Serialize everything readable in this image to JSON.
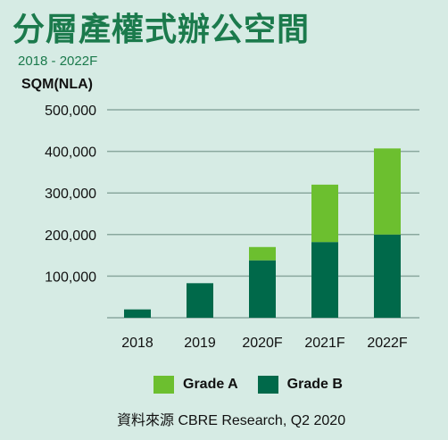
{
  "title": "分層產權式辦公空間",
  "subtitle": "2018 - 2022F",
  "source": "資料來源  CBRE Research, Q2 2020",
  "colors": {
    "background": "#d6ebe4",
    "title": "#1b7a4c",
    "grade_a": "#6cbf2f",
    "grade_b": "#00694a",
    "grid": "#8aa89e"
  },
  "chart_data": {
    "type": "bar",
    "stacked": true,
    "ylabel": "SQM(NLA)",
    "ylim": [
      0,
      500000
    ],
    "yticks": [
      100000,
      200000,
      300000,
      400000,
      500000
    ],
    "ytick_labels": [
      "100,000",
      "200,000",
      "300,000",
      "400,000",
      "500,000"
    ],
    "categories": [
      "2018",
      "2019",
      "2020F",
      "2021F",
      "2022F"
    ],
    "series": [
      {
        "name": "Grade B",
        "values": [
          20000,
          83000,
          138000,
          182000,
          200000
        ]
      },
      {
        "name": "Grade A",
        "values": [
          0,
          0,
          32000,
          138000,
          207000
        ]
      }
    ],
    "grid": true,
    "legend": "bottom"
  }
}
